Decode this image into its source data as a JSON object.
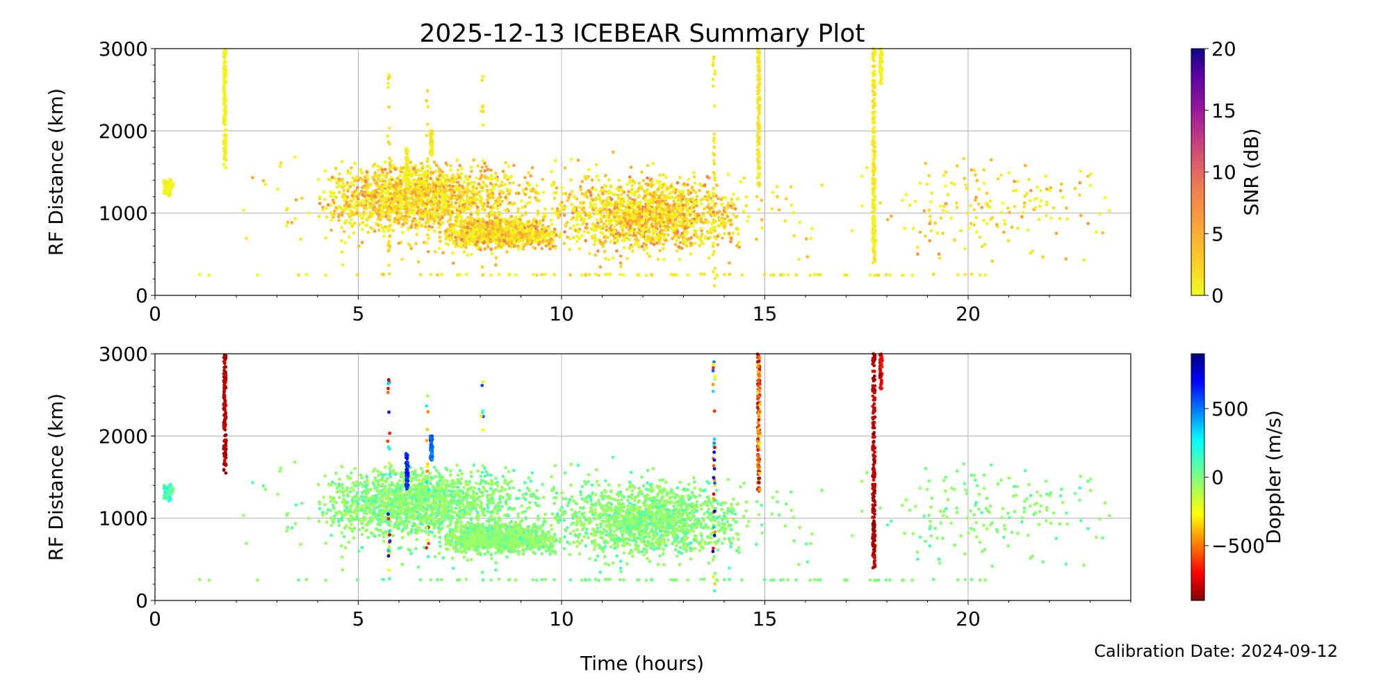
{
  "chart_data": {
    "type": "scatter",
    "title": "2025-12-13 ICEBEAR Summary Plot",
    "footer": "Calibration Date: 2024-09-12",
    "xlabel": "Time (hours)",
    "xlim": [
      0,
      24
    ],
    "xticks": [
      0,
      5,
      10,
      15,
      20
    ],
    "panels": [
      {
        "name": "snr",
        "ylabel": "RF Distance (km)",
        "ylim": [
          0,
          3000
        ],
        "yticks": [
          0,
          1000,
          2000,
          3000
        ],
        "grid": true,
        "colorbar": {
          "label": "SNR (dB)",
          "colormap": "plasma_r",
          "range": [
            0,
            20
          ],
          "ticks": [
            0,
            5,
            10,
            15,
            20
          ]
        }
      },
      {
        "name": "doppler",
        "ylabel": "RF Distance (km)",
        "ylim": [
          0,
          3000
        ],
        "yticks": [
          0,
          1000,
          2000,
          3000
        ],
        "grid": true,
        "colorbar": {
          "label": "Doppler (m/s)",
          "colormap": "jet",
          "range": [
            -900,
            900
          ],
          "ticks": [
            -500,
            0,
            500
          ]
        }
      }
    ],
    "clusters": [
      {
        "t": [
          4.0,
          9.0
        ],
        "r": [
          750,
          1650
        ],
        "n": 1300,
        "snr": [
          0,
          8
        ],
        "doppler": [
          -80,
          120
        ]
      },
      {
        "t": [
          7.0,
          10.0
        ],
        "r": [
          550,
          950
        ],
        "n": 900,
        "snr": [
          0,
          9
        ],
        "doppler": [
          -80,
          80
        ]
      },
      {
        "t": [
          10.0,
          14.5
        ],
        "r": [
          500,
          1450
        ],
        "n": 1100,
        "snr": [
          0,
          9
        ],
        "doppler": [
          -80,
          120
        ]
      },
      {
        "t": [
          2.0,
          17.0
        ],
        "r": [
          300,
          1750
        ],
        "n": 700,
        "snr": [
          0,
          6
        ],
        "doppler": [
          -60,
          120
        ]
      },
      {
        "t": [
          17.0,
          24.0
        ],
        "r": [
          300,
          1800
        ],
        "n": 170,
        "snr": [
          0,
          7
        ],
        "doppler": [
          -60,
          120
        ]
      },
      {
        "t": [
          0.2,
          0.45
        ],
        "r": [
          1200,
          1450
        ],
        "n": 60,
        "snr": [
          0,
          1
        ],
        "doppler": [
          0,
          250
        ]
      },
      {
        "t": [
          0.5,
          23.2
        ],
        "r": [
          240,
          260
        ],
        "n": 90,
        "snr": [
          0,
          3
        ],
        "doppler": [
          -40,
          80
        ]
      }
    ],
    "streaks": [
      {
        "t": 1.72,
        "r": [
          1550,
          3000
        ],
        "n": 120,
        "snr": [
          0,
          1
        ],
        "doppler": [
          -880,
          -780
        ]
      },
      {
        "t": 14.85,
        "r": [
          1300,
          3000
        ],
        "n": 120,
        "snr": [
          0,
          2
        ],
        "doppler": [
          -880,
          -300
        ]
      },
      {
        "t": 17.68,
        "r": [
          350,
          3000
        ],
        "n": 200,
        "snr": [
          0,
          2
        ],
        "doppler": [
          -890,
          -750
        ]
      },
      {
        "t": 17.86,
        "r": [
          2550,
          3000
        ],
        "n": 50,
        "snr": [
          0,
          1
        ],
        "doppler": [
          -880,
          -600
        ]
      },
      {
        "t": 6.2,
        "r": [
          1350,
          1800
        ],
        "n": 60,
        "snr": [
          0,
          2
        ],
        "doppler": [
          550,
          750
        ]
      },
      {
        "t": 6.8,
        "r": [
          1700,
          2000
        ],
        "n": 50,
        "snr": [
          0,
          2
        ],
        "doppler": [
          450,
          600
        ]
      },
      {
        "t": 5.75,
        "r": [
          150,
          2750
        ],
        "n": 25,
        "snr": [
          0,
          3
        ],
        "doppler": [
          -850,
          850
        ]
      },
      {
        "t": 6.7,
        "r": [
          600,
          2900
        ],
        "n": 18,
        "snr": [
          0,
          3
        ],
        "doppler": [
          -850,
          300
        ]
      },
      {
        "t": 8.05,
        "r": [
          2000,
          2750
        ],
        "n": 8,
        "snr": [
          0,
          2
        ],
        "doppler": [
          -850,
          800
        ]
      },
      {
        "t": 13.75,
        "r": [
          100,
          2900
        ],
        "n": 40,
        "snr": [
          0,
          2
        ],
        "doppler": [
          -850,
          850
        ]
      }
    ]
  }
}
